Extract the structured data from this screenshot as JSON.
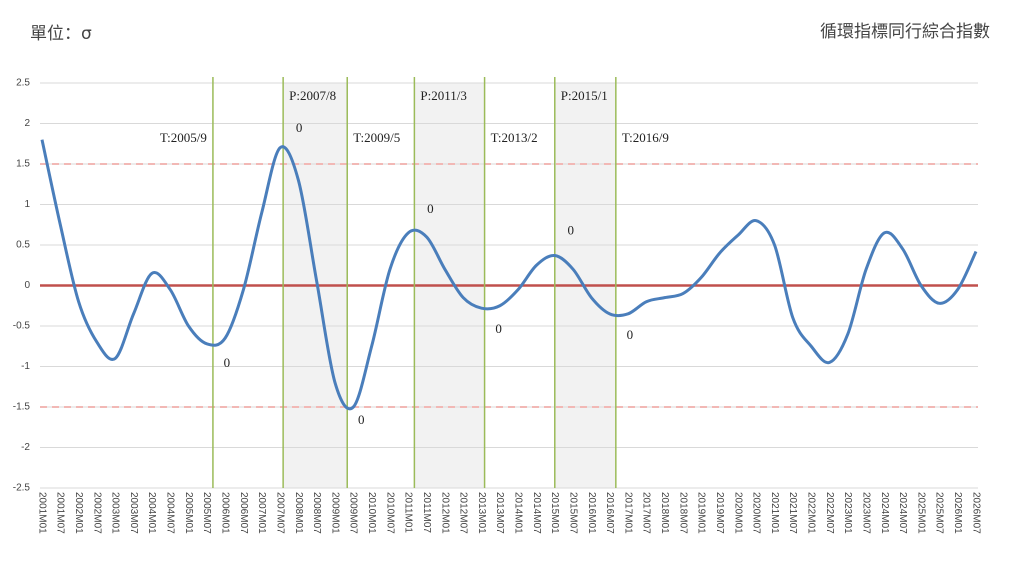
{
  "chart_data": {
    "type": "line",
    "title": "循環指標同行綜合指數",
    "unit_label": "單位：σ",
    "categories": [
      "2001M01",
      "2001M07",
      "2002M01",
      "2002M07",
      "2003M01",
      "2003M07",
      "2004M01",
      "2004M07",
      "2005M01",
      "2005M07",
      "2006M01",
      "2006M07",
      "2007M01",
      "2007M07",
      "2008M01",
      "2008M07",
      "2009M01",
      "2009M07",
      "2010M01",
      "2010M07",
      "2011M01",
      "2011M07",
      "2012M01",
      "2012M07",
      "2013M01",
      "2013M07",
      "2014M01",
      "2014M07",
      "2015M01",
      "2015M07",
      "2016M01",
      "2016M07",
      "2017M01",
      "2017M07",
      "2018M01",
      "2018M07",
      "2019M01",
      "2019M07",
      "2020M01",
      "2020M07",
      "2021M01",
      "2021M07",
      "2022M01",
      "2022M07",
      "2023M01",
      "2023M07",
      "2024M01",
      "2024M07",
      "2025M01",
      "2025M07",
      "2026M01",
      "2026M07"
    ],
    "series": [
      {
        "name": "循環指標同行綜合指數",
        "color": "#4a7ebb",
        "values": [
          1.8,
          0.75,
          -0.2,
          -0.7,
          -0.9,
          -0.35,
          0.15,
          -0.05,
          -0.5,
          -0.72,
          -0.65,
          -0.05,
          0.9,
          1.7,
          1.3,
          0.05,
          -1.2,
          -1.5,
          -0.75,
          0.2,
          0.65,
          0.6,
          0.2,
          -0.15,
          -0.28,
          -0.25,
          -0.05,
          0.25,
          0.37,
          0.2,
          -0.15,
          -0.35,
          -0.35,
          -0.2,
          -0.15,
          -0.1,
          0.1,
          0.4,
          0.62,
          0.8,
          0.5,
          -0.4,
          -0.75,
          -0.95,
          -0.6,
          0.2,
          0.65,
          0.45,
          0.0,
          -0.22,
          -0.05,
          0.42
        ]
      }
    ],
    "ylim": [
      -2.5,
      2.5
    ],
    "yticks": [
      2.5,
      2,
      1.5,
      1,
      0.5,
      0,
      -0.5,
      -1,
      -1.5,
      -2,
      -2.5
    ],
    "grid": true,
    "zero_line": {
      "value": 0,
      "color": "#c0504d"
    },
    "reference_lines": [
      {
        "value": 1.5,
        "color": "#f2b8b5"
      },
      {
        "value": -1.5,
        "color": "#f2b8b5"
      }
    ],
    "turning_points": [
      {
        "label": "T:2005/9",
        "marker": "0"
      },
      {
        "label": "P:2007/8",
        "marker": "0"
      },
      {
        "label": "T:2009/5",
        "marker": "0"
      },
      {
        "label": "P:2011/3",
        "marker": "0"
      },
      {
        "label": "T:2013/2",
        "marker": "0"
      },
      {
        "label": "P:2015/1",
        "marker": "0"
      },
      {
        "label": "T:2016/9",
        "marker": "0"
      }
    ],
    "turning_line_color": "#9bbb59",
    "contraction_color": "#f2f2f2"
  }
}
